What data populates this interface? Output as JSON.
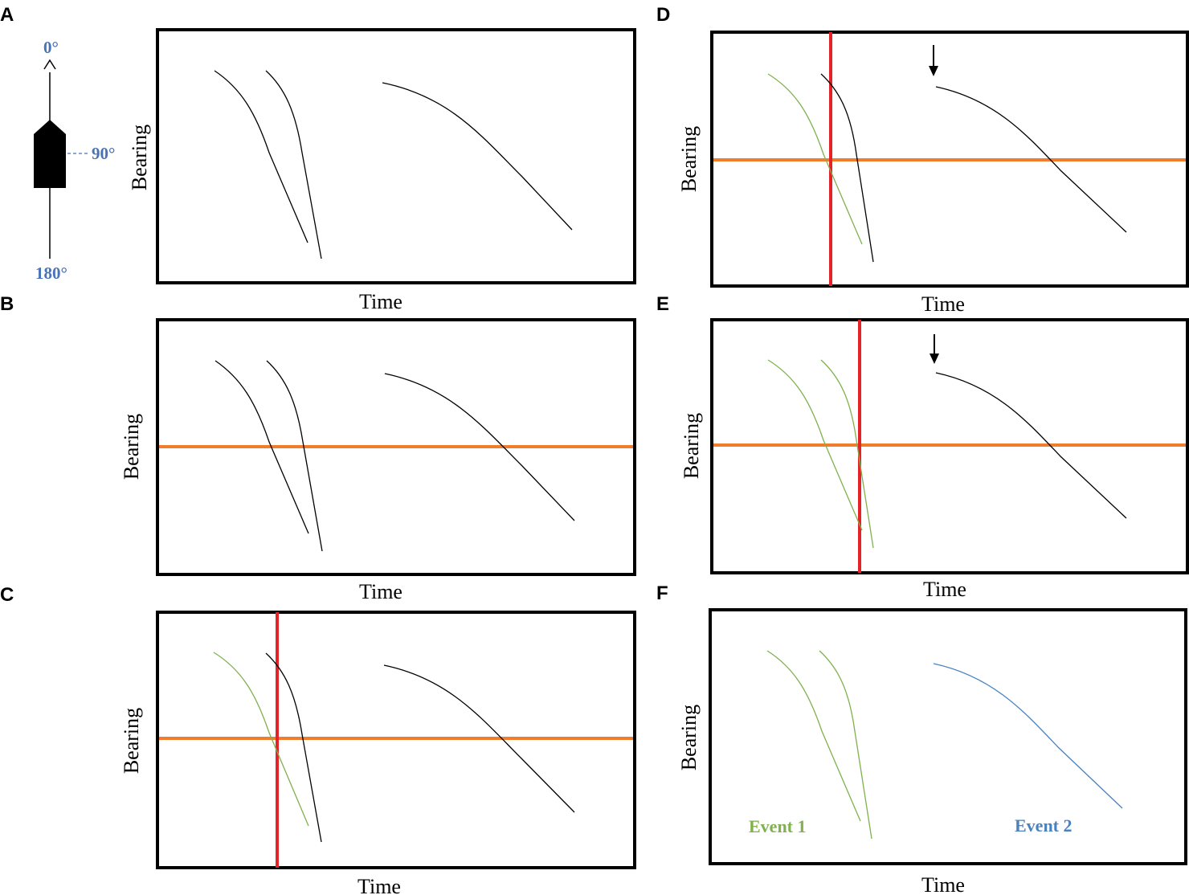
{
  "colors": {
    "track_default": "#000000",
    "event1": "#7fb14d",
    "event2": "#4a82c0",
    "bearing_line": "#ef7d2b",
    "time_line": "#e52225",
    "compass_text": "#4a74b8"
  },
  "compass": {
    "north_label": "0°",
    "east_label": "90°",
    "south_label": "180°",
    "ship_icon": "ship-icon"
  },
  "axes": {
    "xlabel": "Time",
    "ylabel": "Bearing"
  },
  "panels": [
    {
      "letter": "A",
      "bearing_line": false,
      "time_line": false,
      "arrow": false,
      "track_colors": [
        "default",
        "default",
        "default"
      ]
    },
    {
      "letter": "B",
      "bearing_line": true,
      "time_line": false,
      "arrow": false,
      "track_colors": [
        "default",
        "default",
        "default"
      ]
    },
    {
      "letter": "C",
      "bearing_line": true,
      "time_line": true,
      "arrow": false,
      "track_colors": [
        "event1",
        "default",
        "default"
      ]
    },
    {
      "letter": "D",
      "bearing_line": true,
      "time_line": true,
      "arrow": true,
      "track_colors": [
        "event1",
        "default",
        "default"
      ]
    },
    {
      "letter": "E",
      "bearing_line": true,
      "time_line": true,
      "arrow": true,
      "track_colors": [
        "event1",
        "event1",
        "default"
      ]
    },
    {
      "letter": "F",
      "bearing_line": false,
      "time_line": false,
      "arrow": false,
      "track_colors": [
        "event1",
        "event1",
        "event2"
      ]
    }
  ],
  "events": {
    "event1_label": "Event 1",
    "event2_label": "Event 2"
  }
}
